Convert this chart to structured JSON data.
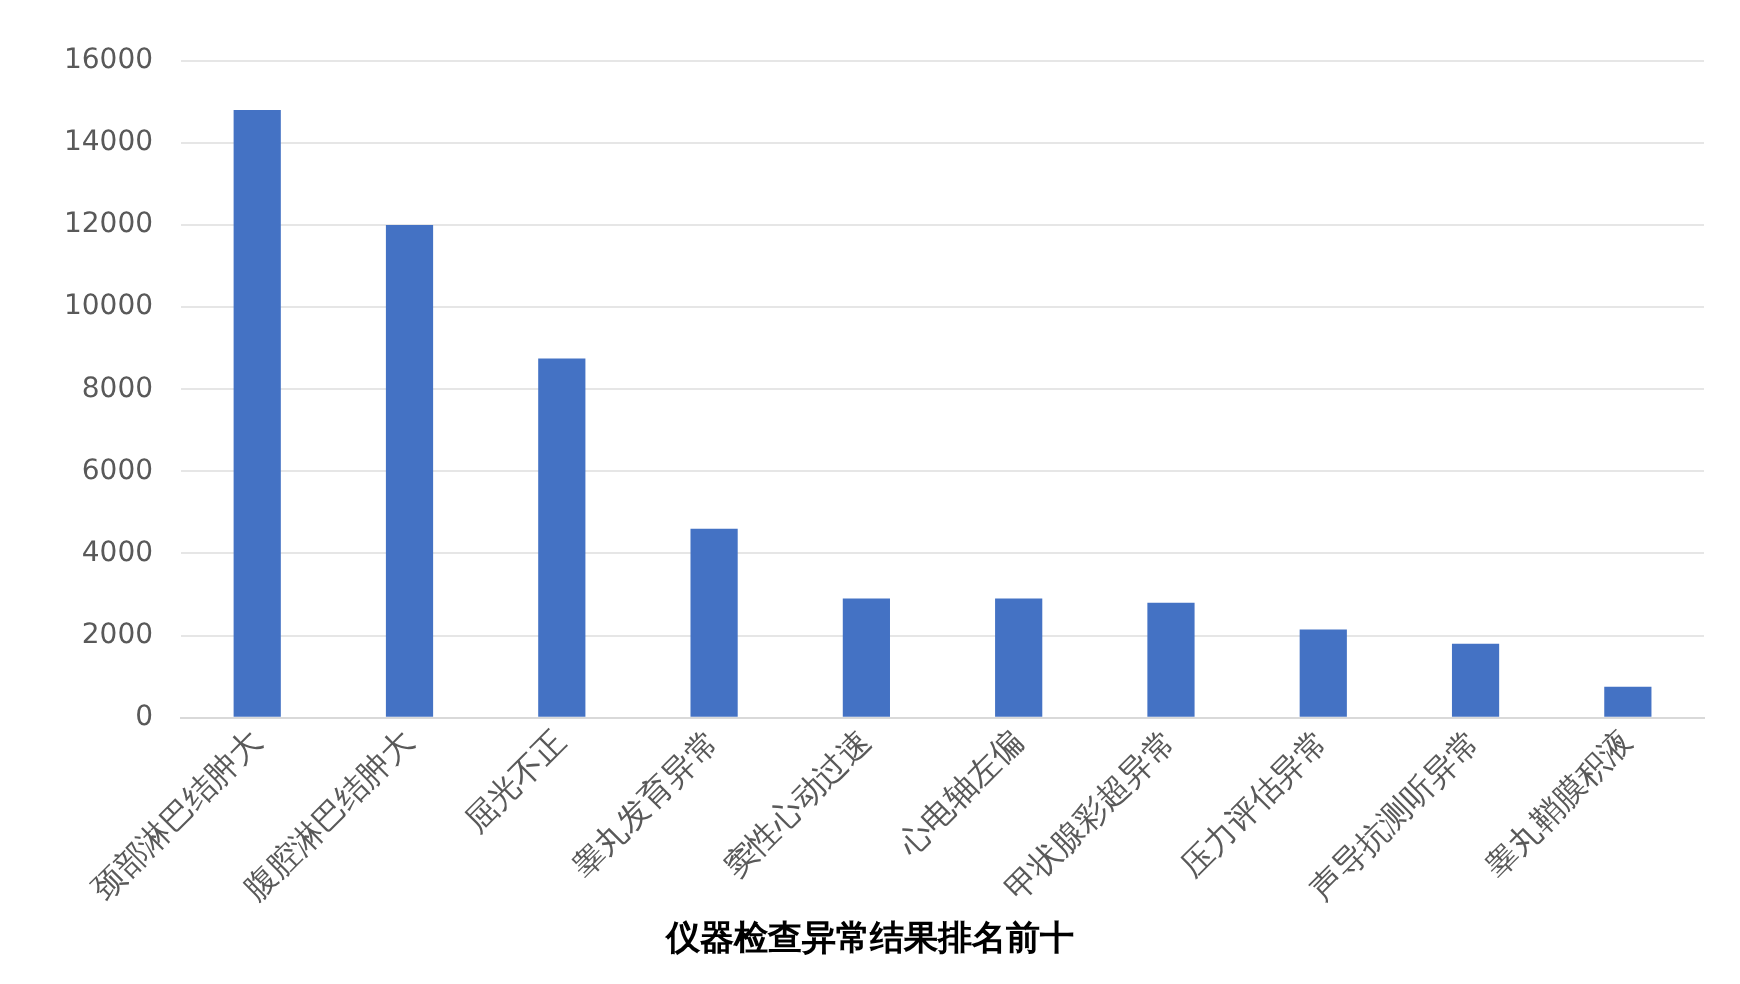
{
  "chart_data": {
    "type": "bar",
    "title": "仪器检查异常结果排名前十",
    "categories": [
      "颈部淋巴结肿大",
      "腹腔淋巴结肿大",
      "屈光不正",
      "睾丸发育异常",
      "窦性心动过速",
      "心电轴左偏",
      "甲状腺彩超异常",
      "压力评估异常",
      "声导抗测听异常",
      "睾丸鞘膜积液"
    ],
    "values": [
      14800,
      12000,
      8750,
      4600,
      2900,
      2900,
      2800,
      2150,
      1800,
      750
    ],
    "color": "#4472c4",
    "ylim": [
      0,
      16000
    ],
    "yticks": [
      0,
      2000,
      4000,
      6000,
      8000,
      10000,
      12000,
      14000,
      16000
    ],
    "grid": "y",
    "legend": false
  }
}
